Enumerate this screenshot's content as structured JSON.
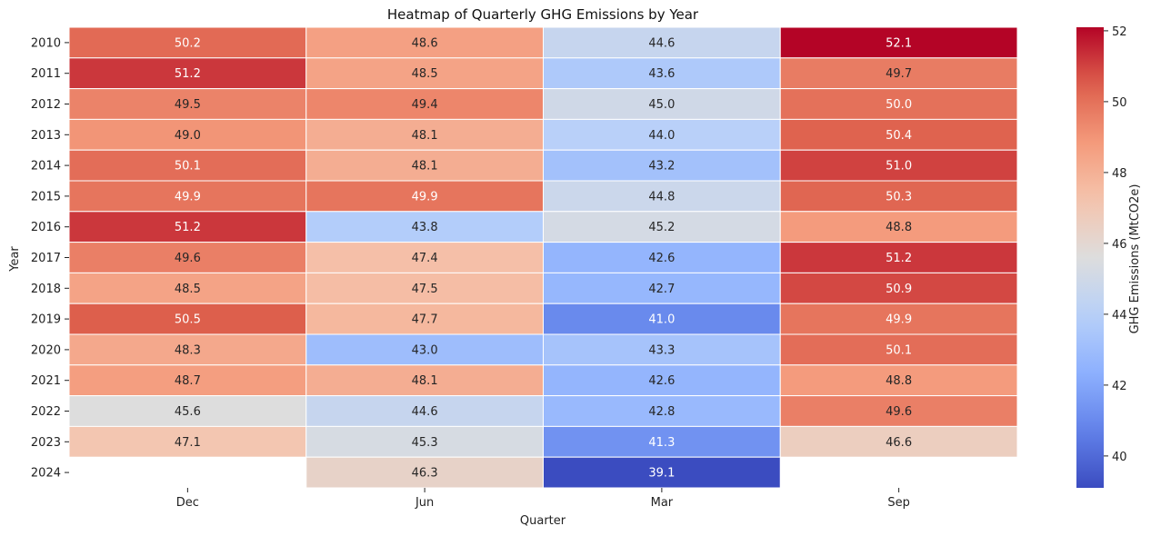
{
  "chart_data": {
    "type": "heatmap",
    "title": "Heatmap of Quarterly GHG Emissions by Year",
    "xlabel": "Quarter",
    "ylabel": "Year",
    "x_categories": [
      "Dec",
      "Jun",
      "Mar",
      "Sep"
    ],
    "y_categories": [
      "2010",
      "2011",
      "2012",
      "2013",
      "2014",
      "2015",
      "2016",
      "2017",
      "2018",
      "2019",
      "2020",
      "2021",
      "2022",
      "2023",
      "2024"
    ],
    "values": [
      [
        50.2,
        48.6,
        44.6,
        52.1
      ],
      [
        51.2,
        48.5,
        43.6,
        49.7
      ],
      [
        49.5,
        49.4,
        45.0,
        50.0
      ],
      [
        49.0,
        48.1,
        44.0,
        50.4
      ],
      [
        50.1,
        48.1,
        43.2,
        51.0
      ],
      [
        49.9,
        49.9,
        44.8,
        50.3
      ],
      [
        51.2,
        43.8,
        45.2,
        48.8
      ],
      [
        49.6,
        47.4,
        42.6,
        51.2
      ],
      [
        48.5,
        47.5,
        42.7,
        50.9
      ],
      [
        50.5,
        47.7,
        41.0,
        49.9
      ],
      [
        48.3,
        43.0,
        43.3,
        50.1
      ],
      [
        48.7,
        48.1,
        42.6,
        48.8
      ],
      [
        45.6,
        44.6,
        42.8,
        49.6
      ],
      [
        47.1,
        45.3,
        41.3,
        46.6
      ],
      [
        null,
        46.3,
        39.1,
        null
      ]
    ],
    "colorbar": {
      "label": "GHG Emissions (MtCO2e)",
      "min": 39.1,
      "max": 52.1,
      "ticks": [
        "40",
        "42",
        "44",
        "46",
        "48",
        "50",
        "52"
      ],
      "colormap": "coolwarm"
    }
  }
}
